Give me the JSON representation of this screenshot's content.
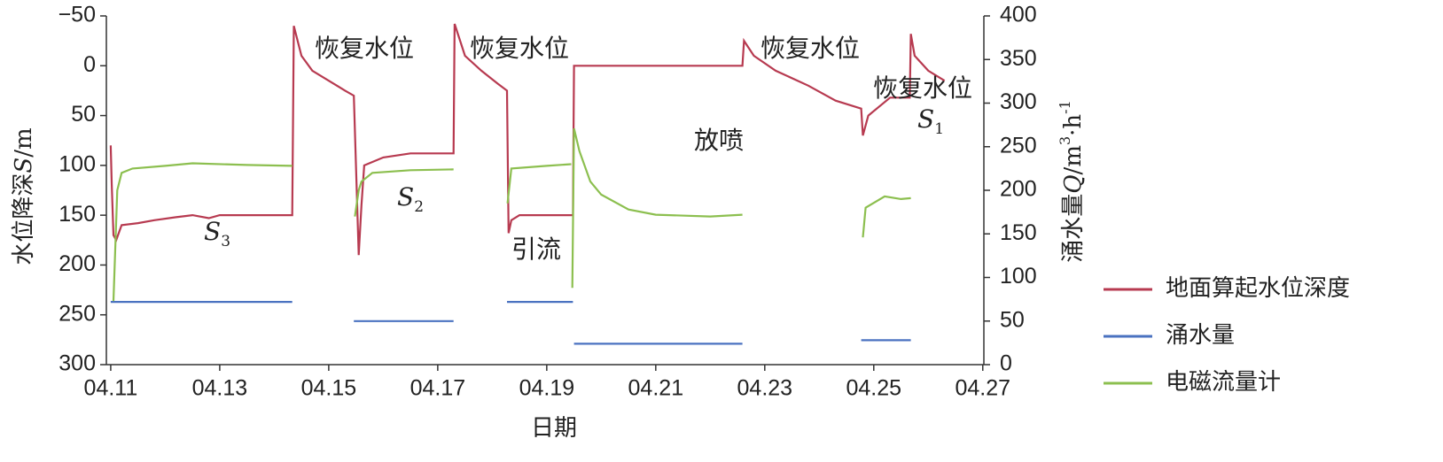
{
  "chart_data": {
    "type": "line",
    "x_label": "日期",
    "y_label": [
      "水位降深",
      "S",
      "/m"
    ],
    "y2_label": [
      "涌水量",
      "Q",
      "/m",
      "3",
      "·h",
      "-1"
    ],
    "xlim": [
      10.92,
      27.02
    ],
    "xticks": [
      {
        "value": 11,
        "label": "04.11"
      },
      {
        "value": 13,
        "label": "04.13"
      },
      {
        "value": 15,
        "label": "04.15"
      },
      {
        "value": 17,
        "label": "04.17"
      },
      {
        "value": 19,
        "label": "04.19"
      },
      {
        "value": 21,
        "label": "04.21"
      },
      {
        "value": 23,
        "label": "04.23"
      },
      {
        "value": 25,
        "label": "04.25"
      },
      {
        "value": 27,
        "label": "04.27"
      }
    ],
    "ylim": [
      -50,
      300
    ],
    "y_inverted": true,
    "yticks": [
      {
        "value": -50,
        "label": "−50"
      },
      0,
      50,
      100,
      150,
      200,
      250,
      300
    ],
    "y2lim": [
      0,
      400
    ],
    "y2ticks": [
      0,
      50,
      100,
      150,
      200,
      250,
      300,
      350,
      400
    ],
    "legend": "right",
    "series": [
      {
        "name": "地面算起水位深度",
        "color": "#b73a50",
        "axis": "y",
        "x": [
          11.0,
          11.02,
          11.05,
          11.1,
          11.2,
          11.5,
          11.8,
          12.2,
          12.5,
          12.8,
          13.0,
          13.5,
          14.33,
          14.36,
          14.5,
          14.7,
          15.0,
          15.3,
          15.46,
          15.5,
          15.55,
          15.6,
          15.65,
          16.0,
          16.5,
          17.29,
          17.31,
          17.5,
          17.8,
          18.1,
          18.27,
          18.3,
          18.35,
          18.5,
          19.48,
          19.5,
          22.59,
          22.62,
          22.8,
          23.2,
          23.8,
          24.3,
          24.77,
          24.8,
          24.9,
          25.3,
          25.66,
          25.68,
          25.75,
          26.0,
          26.3
        ],
        "values": [
          80,
          120,
          170,
          175,
          160,
          158,
          155,
          152,
          150,
          153,
          150,
          150,
          150,
          -40,
          -10,
          5,
          15,
          25,
          30,
          100,
          190,
          140,
          100,
          92,
          88,
          88,
          -42,
          -10,
          5,
          18,
          25,
          168,
          155,
          150,
          150,
          0,
          0,
          -25,
          -10,
          5,
          20,
          35,
          43,
          70,
          50,
          32,
          32,
          -32,
          -10,
          5,
          15
        ]
      },
      {
        "name": "涌水量",
        "color": "#4a72c0",
        "axis": "y2",
        "x": [
          11.0,
          14.33,
          null,
          15.46,
          17.29,
          null,
          18.27,
          19.48,
          null,
          19.5,
          22.59,
          null,
          24.77,
          25.68
        ],
        "values": [
          72,
          72,
          null,
          50,
          50,
          null,
          72,
          72,
          null,
          24,
          24,
          null,
          28,
          28
        ]
      },
      {
        "name": "电磁流量计",
        "color": "#8cbf4f",
        "axis": "y2",
        "x": [
          11.05,
          11.12,
          11.2,
          11.4,
          12.0,
          12.5,
          13.5,
          14.33,
          null,
          15.48,
          15.55,
          15.6,
          15.8,
          16.5,
          17.29,
          null,
          18.28,
          18.35,
          19.0,
          19.45,
          null,
          19.47,
          19.5,
          19.6,
          19.8,
          20.0,
          20.5,
          21.0,
          22.0,
          22.59,
          null,
          24.8,
          24.85,
          25.2,
          25.5,
          25.68
        ],
        "values": [
          73,
          200,
          220,
          225,
          228,
          231,
          229,
          228,
          null,
          170,
          200,
          210,
          220,
          223,
          224,
          null,
          185,
          225,
          228,
          230,
          null,
          88,
          271,
          245,
          210,
          195,
          178,
          172,
          170,
          172,
          null,
          146,
          180,
          193,
          190,
          191
        ]
      }
    ],
    "annotations": [
      {
        "text": "恢复水位"
      },
      {
        "text": "恢复水位"
      },
      {
        "text": "恢复水位"
      },
      {
        "text": "恢复水位"
      },
      {
        "text": "放喷"
      },
      {
        "text": "引流"
      },
      {
        "text": "S",
        "sub": "3"
      },
      {
        "text": "S",
        "sub": "2"
      },
      {
        "text": "S",
        "sub": "1"
      }
    ]
  }
}
